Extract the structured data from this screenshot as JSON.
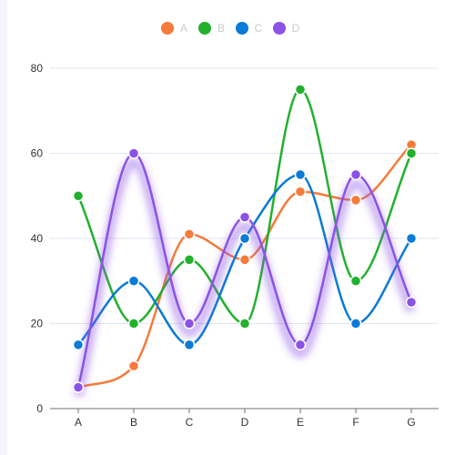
{
  "chart_data": {
    "type": "line",
    "smooth": true,
    "categories": [
      "A",
      "B",
      "C",
      "D",
      "E",
      "F",
      "G"
    ],
    "ylim": [
      0,
      80
    ],
    "yticks": [
      0,
      20,
      40,
      60,
      80
    ],
    "grid": true,
    "legend_position": "top-center",
    "series": [
      {
        "name": "A",
        "color": "#f47b3a",
        "values": [
          5,
          10,
          41,
          35,
          51,
          49,
          62
        ]
      },
      {
        "name": "B",
        "color": "#22b02d",
        "values": [
          50,
          20,
          35,
          20,
          75,
          30,
          60
        ]
      },
      {
        "name": "C",
        "color": "#0a7bd6",
        "values": [
          15,
          30,
          15,
          40,
          55,
          20,
          40
        ]
      },
      {
        "name": "D",
        "color": "#8c52e6",
        "values": [
          5,
          60,
          20,
          45,
          15,
          55,
          25
        ],
        "glow": true
      }
    ]
  }
}
